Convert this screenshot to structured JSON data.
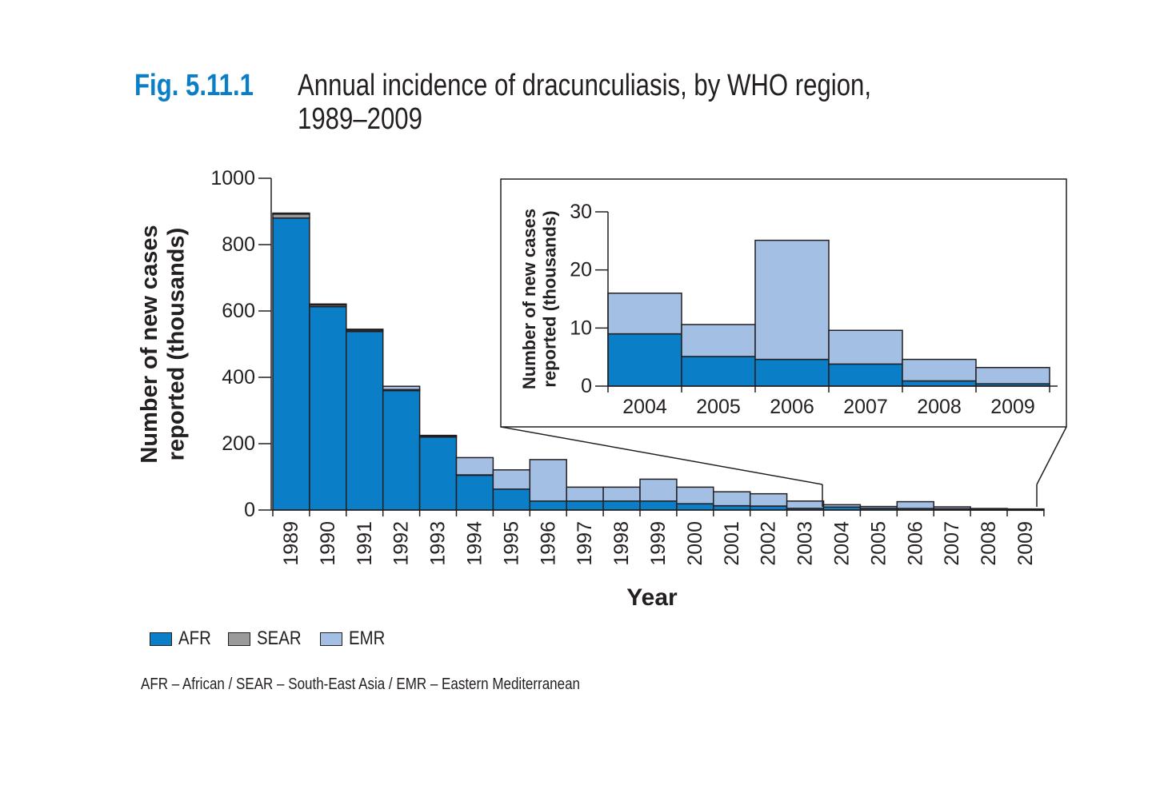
{
  "figure": {
    "label": "Fig. 5.11.1",
    "title_line1": "Annual incidence of dracunculiasis, by WHO region,",
    "title_line2": "1989–2009"
  },
  "colors": {
    "AFR": "#0a7fc7",
    "SEAR": "#9a9a9a",
    "EMR": "#a3bfe4",
    "stroke": "#231f20"
  },
  "legend": [
    {
      "key": "AFR",
      "label": "AFR"
    },
    {
      "key": "SEAR",
      "label": "SEAR"
    },
    {
      "key": "EMR",
      "label": "EMR"
    }
  ],
  "footnote": "AFR – African / SEAR – South-East Asia / EMR – Eastern Mediterranean",
  "chart_data": [
    {
      "type": "bar",
      "stacked": true,
      "title": "",
      "xlabel": "Year",
      "ylabel": "Number of new cases reported (thousands)",
      "ylim": [
        0,
        1000
      ],
      "yticks": [
        0,
        200,
        400,
        600,
        800,
        1000
      ],
      "categories": [
        "1989",
        "1990",
        "1991",
        "1992",
        "1993",
        "1994",
        "1995",
        "1996",
        "1997",
        "1998",
        "1999",
        "2000",
        "2001",
        "2002",
        "2003",
        "2004",
        "2005",
        "2006",
        "2007",
        "2008",
        "2009"
      ],
      "series": [
        {
          "name": "AFR",
          "values": [
            880,
            613,
            538,
            360,
            220,
            105,
            63,
            27,
            27,
            27,
            27,
            19,
            13,
            12,
            5,
            9,
            5.1,
            4.6,
            3.8,
            0.9,
            0.4
          ]
        },
        {
          "name": "SEAR",
          "values": [
            12,
            5,
            4,
            3,
            2,
            1,
            0,
            0,
            0,
            0,
            0,
            0,
            0,
            0,
            0,
            0,
            0,
            0,
            0,
            0,
            0
          ]
        },
        {
          "name": "EMR",
          "values": [
            3,
            3,
            3,
            10,
            3,
            52,
            58,
            125,
            42,
            42,
            66,
            50,
            42,
            37,
            22,
            7,
            5.5,
            20.5,
            5.8,
            3.7,
            2.8
          ]
        }
      ]
    },
    {
      "type": "bar",
      "stacked": true,
      "title": "",
      "xlabel": "",
      "ylabel": "Number of new cases reported (thousands)",
      "ylim": [
        0,
        30
      ],
      "yticks": [
        0,
        10,
        20,
        30
      ],
      "categories": [
        "2004",
        "2005",
        "2006",
        "2007",
        "2008",
        "2009"
      ],
      "series": [
        {
          "name": "AFR",
          "values": [
            9,
            5.1,
            4.6,
            3.8,
            0.9,
            0.4
          ]
        },
        {
          "name": "EMR",
          "values": [
            7,
            5.5,
            20.5,
            5.8,
            3.7,
            2.8
          ]
        }
      ]
    }
  ]
}
